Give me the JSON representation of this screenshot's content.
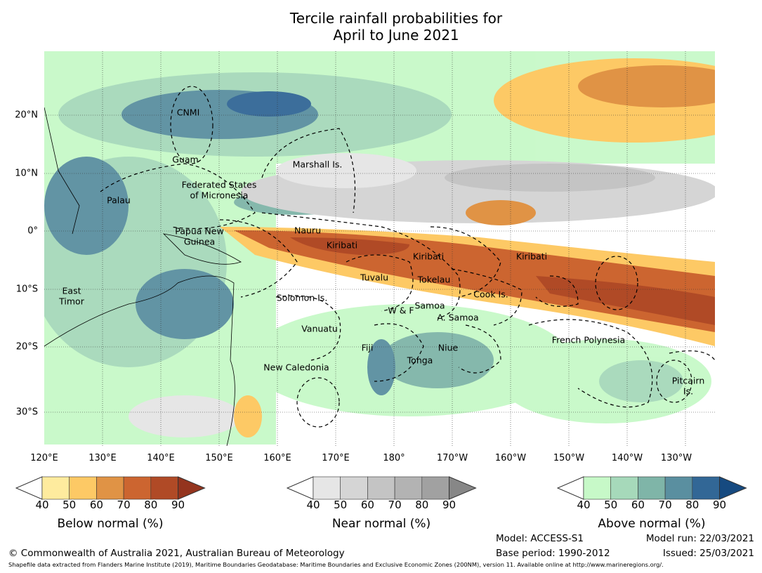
{
  "title": {
    "line1": "Tercile rainfall probabilities for",
    "line2": "April to June 2021"
  },
  "axes": {
    "lat": [
      "20°N",
      "10°N",
      "0°",
      "10°S",
      "20°S",
      "30°S"
    ],
    "lon": [
      "120°E",
      "130°E",
      "140°E",
      "150°E",
      "160°E",
      "170°E",
      "180°",
      "170°W",
      "160°W",
      "150°W",
      "140°W",
      "130°W"
    ]
  },
  "regions": {
    "cnmi": "CNMI",
    "guam": "Guam",
    "fsm1": "Federated States",
    "fsm2": "of Micronesia",
    "marshall": "Marshall Is.",
    "palau": "Palau",
    "png1": "Papua New",
    "png2": "Guinea",
    "nauru": "Nauru",
    "kiribati": "Kiribati",
    "tuvalu": "Tuvalu",
    "tokelau": "Tokelau",
    "timor1": "East",
    "timor2": "Timor",
    "solomon": "Solomon Is.",
    "cook": "Cook Is.",
    "samoa": "Samoa",
    "wf": "W & F",
    "asamoa": "A. Samoa",
    "vanuatu": "Vanuatu",
    "fp": "French Polynesia",
    "fiji": "Fiji",
    "niue": "Niue",
    "tonga": "Tonga",
    "nc": "New Caledonia",
    "pit1": "Pitcairn",
    "pit2": "Is."
  },
  "colorbars": [
    {
      "label": "Below normal (%)",
      "ticks": [
        "40",
        "50",
        "60",
        "70",
        "80",
        "90"
      ],
      "colors": [
        "#ffffff",
        "#feeb9e",
        "#fdc965",
        "#e09345",
        "#cc6530",
        "#b04a26",
        "#94341e"
      ]
    },
    {
      "label": "Near normal (%)",
      "ticks": [
        "40",
        "50",
        "60",
        "70",
        "80",
        "90"
      ],
      "colors": [
        "#ffffff",
        "#e6e6e6",
        "#d5d5d5",
        "#c4c4c4",
        "#b3b3b3",
        "#a1a1a1",
        "#878787"
      ]
    },
    {
      "label": "Above normal (%)",
      "ticks": [
        "40",
        "50",
        "60",
        "70",
        "80",
        "90"
      ],
      "colors": [
        "#ffffff",
        "#c7f9c8",
        "#a6d9ba",
        "#7fb5a8",
        "#5a8fa0",
        "#326796",
        "#164a80"
      ]
    }
  ],
  "footer": {
    "copyright": "© Commonwealth of Australia 2021, Australian Bureau of Meteorology",
    "model": "Model: ACCESS-S1",
    "base": "Base period: 1990-2012",
    "run": "Model run: 22/03/2021",
    "issued": "Issued: 25/03/2021",
    "shapefile": "Shapefile data extracted from Flanders Marine Institute (2019), Maritime Boundaries Geodatabase: Maritime Boundaries and Exclusive Economic Zones (200NM), version 11. Available online at http://www.marineregions.org/."
  }
}
